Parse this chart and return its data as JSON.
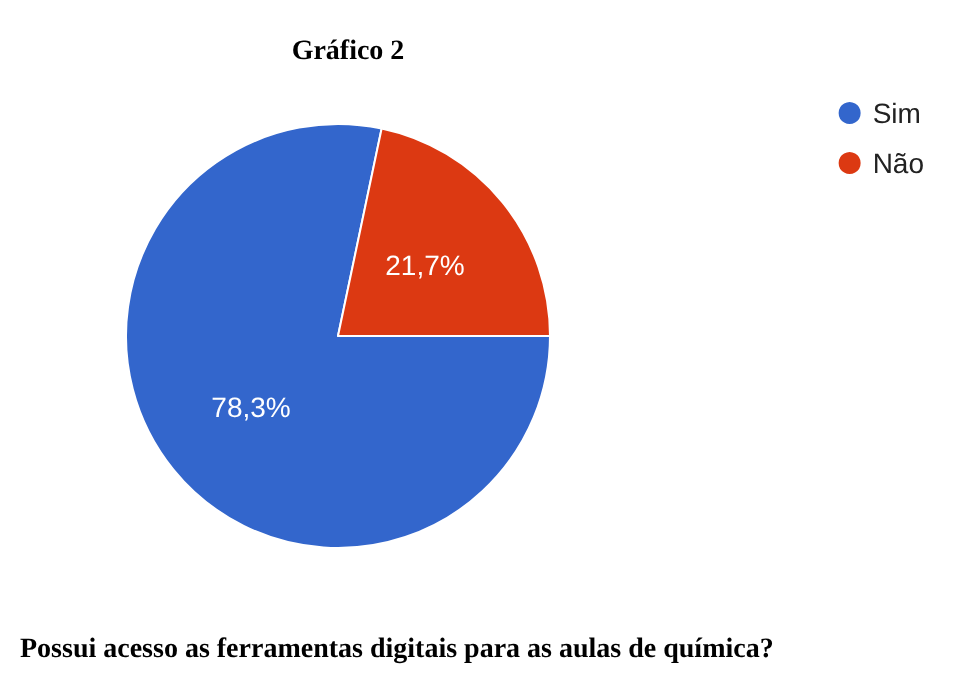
{
  "chart_data": {
    "type": "pie",
    "title": "Gráfico 2",
    "categories": [
      "Sim",
      "Não"
    ],
    "values": [
      78.3,
      21.7
    ],
    "colors": [
      "#3366cc",
      "#dc3912"
    ],
    "value_labels": [
      "78,3%",
      "21,7%"
    ],
    "legend": "top right",
    "annotations": [
      "Possui acesso as ferramentas digitais para as aulas de química?"
    ]
  }
}
